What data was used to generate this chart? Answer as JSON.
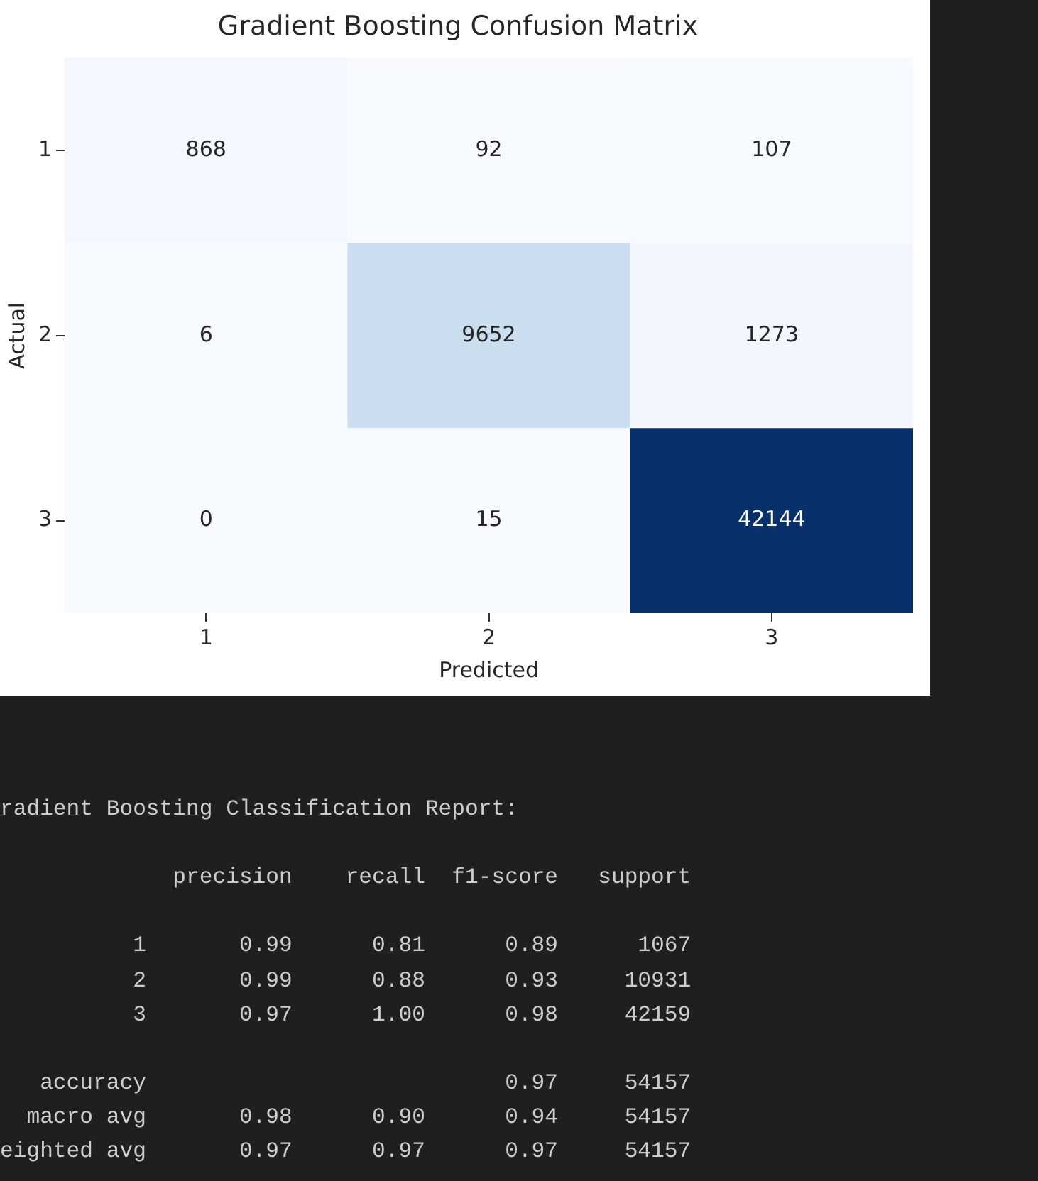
{
  "chart_data": [
    {
      "type": "heatmap",
      "title": "Gradient Boosting Confusion Matrix",
      "xlabel": "Predicted",
      "ylabel": "Actual",
      "categories": [
        "1",
        "2",
        "3"
      ],
      "y_categories": [
        "1",
        "2",
        "3"
      ],
      "cells": [
        [
          868,
          92,
          107
        ],
        [
          6,
          9652,
          1273
        ],
        [
          0,
          15,
          42144
        ]
      ],
      "data_labels": true,
      "grid": false,
      "legend": false
    },
    {
      "type": "other",
      "title": "radient Boosting Classification Report:",
      "annotations": [
        "             precision    recall  f1-score   support",
        "          1       0.99      0.81      0.89      1067",
        "          2       0.99      0.88      0.93     10931",
        "          3       0.97      1.00      0.98     42159",
        "   accuracy                           0.97     54157",
        "  macro avg       0.98      0.90      0.94     54157",
        "eighted avg       0.97      0.97      0.97     54157"
      ]
    }
  ]
}
